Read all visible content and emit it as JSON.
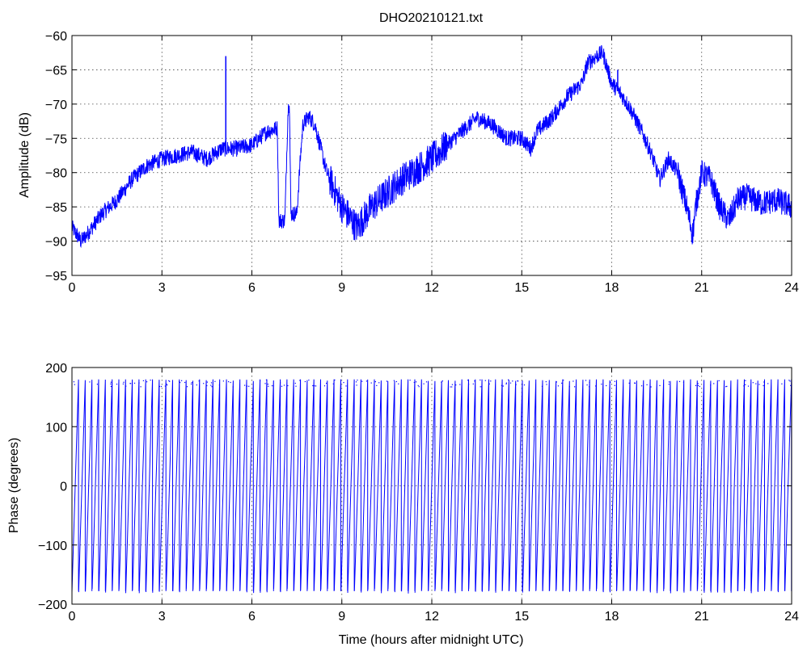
{
  "colors": {
    "series": "#0000ff",
    "axes": "#000000",
    "background": "#ffffff"
  },
  "chart_data": [
    {
      "type": "line",
      "title": "DHO20210121.txt",
      "xlabel": "",
      "ylabel": "Amplitude (dB)",
      "xlim": [
        0,
        24
      ],
      "ylim": [
        -95,
        -60
      ],
      "xticks": [
        0,
        3,
        6,
        9,
        12,
        15,
        18,
        21,
        24
      ],
      "yticks": [
        -95,
        -90,
        -85,
        -80,
        -75,
        -70,
        -65,
        -60
      ],
      "grid": true,
      "noise_db": 1.2,
      "spikes": [
        {
          "x": 5.13,
          "y": -63
        },
        {
          "x": 18.2,
          "y": -65
        }
      ],
      "series": [
        {
          "x": [
            0,
            0.3,
            0.5,
            1.0,
            1.5,
            2.0,
            2.5,
            3.0,
            3.5,
            4.0,
            4.5,
            5.0,
            5.5,
            6.0,
            6.5,
            6.85,
            6.9,
            7.1,
            7.2,
            7.25,
            7.3,
            7.5,
            7.6,
            7.7,
            7.9,
            8.1,
            8.5,
            9.0,
            9.5,
            10.0,
            10.5,
            11.0,
            11.5,
            12.0,
            12.5,
            13.0,
            13.5,
            14.0,
            14.5,
            15.0,
            15.3,
            15.5,
            16.0,
            16.5,
            17.0,
            17.2,
            17.5,
            17.7,
            18.0,
            18.3,
            18.6,
            19.0,
            19.3,
            19.6,
            19.9,
            20.2,
            20.5,
            20.7,
            20.8,
            21.0,
            21.3,
            21.6,
            21.9,
            22.2,
            22.5,
            23.0,
            23.5,
            24.0
          ],
          "values": [
            -88,
            -90,
            -89,
            -86,
            -84,
            -81,
            -79,
            -78,
            -77.5,
            -77,
            -78,
            -76.5,
            -76.5,
            -76,
            -74,
            -73.5,
            -87,
            -87,
            -71.5,
            -69,
            -86,
            -86,
            -79,
            -73,
            -71.8,
            -73,
            -80,
            -85,
            -88,
            -85,
            -83,
            -81,
            -79.5,
            -78,
            -76,
            -74,
            -72,
            -73,
            -75,
            -75,
            -76.5,
            -74,
            -72,
            -69,
            -67,
            -64,
            -63,
            -62.5,
            -67,
            -68.5,
            -70.5,
            -74,
            -77,
            -81,
            -78,
            -80,
            -85,
            -89,
            -85,
            -80,
            -81,
            -85,
            -87,
            -84,
            -83.5,
            -84.5,
            -84,
            -85
          ]
        }
      ]
    },
    {
      "type": "line",
      "title": "",
      "xlabel": "Time (hours after midnight UTC)",
      "ylabel": "Phase (degrees)",
      "xlim": [
        0,
        24
      ],
      "ylim": [
        -200,
        200
      ],
      "xticks": [
        0,
        3,
        6,
        9,
        12,
        15,
        18,
        21,
        24
      ],
      "yticks": [
        -200,
        -100,
        0,
        100,
        200
      ],
      "grid": true,
      "wrap": [
        -180,
        180
      ],
      "wrap_cycles": 107,
      "series": [
        {
          "x": [
            0,
            24
          ],
          "values": [
            -180,
            180
          ]
        }
      ]
    }
  ]
}
